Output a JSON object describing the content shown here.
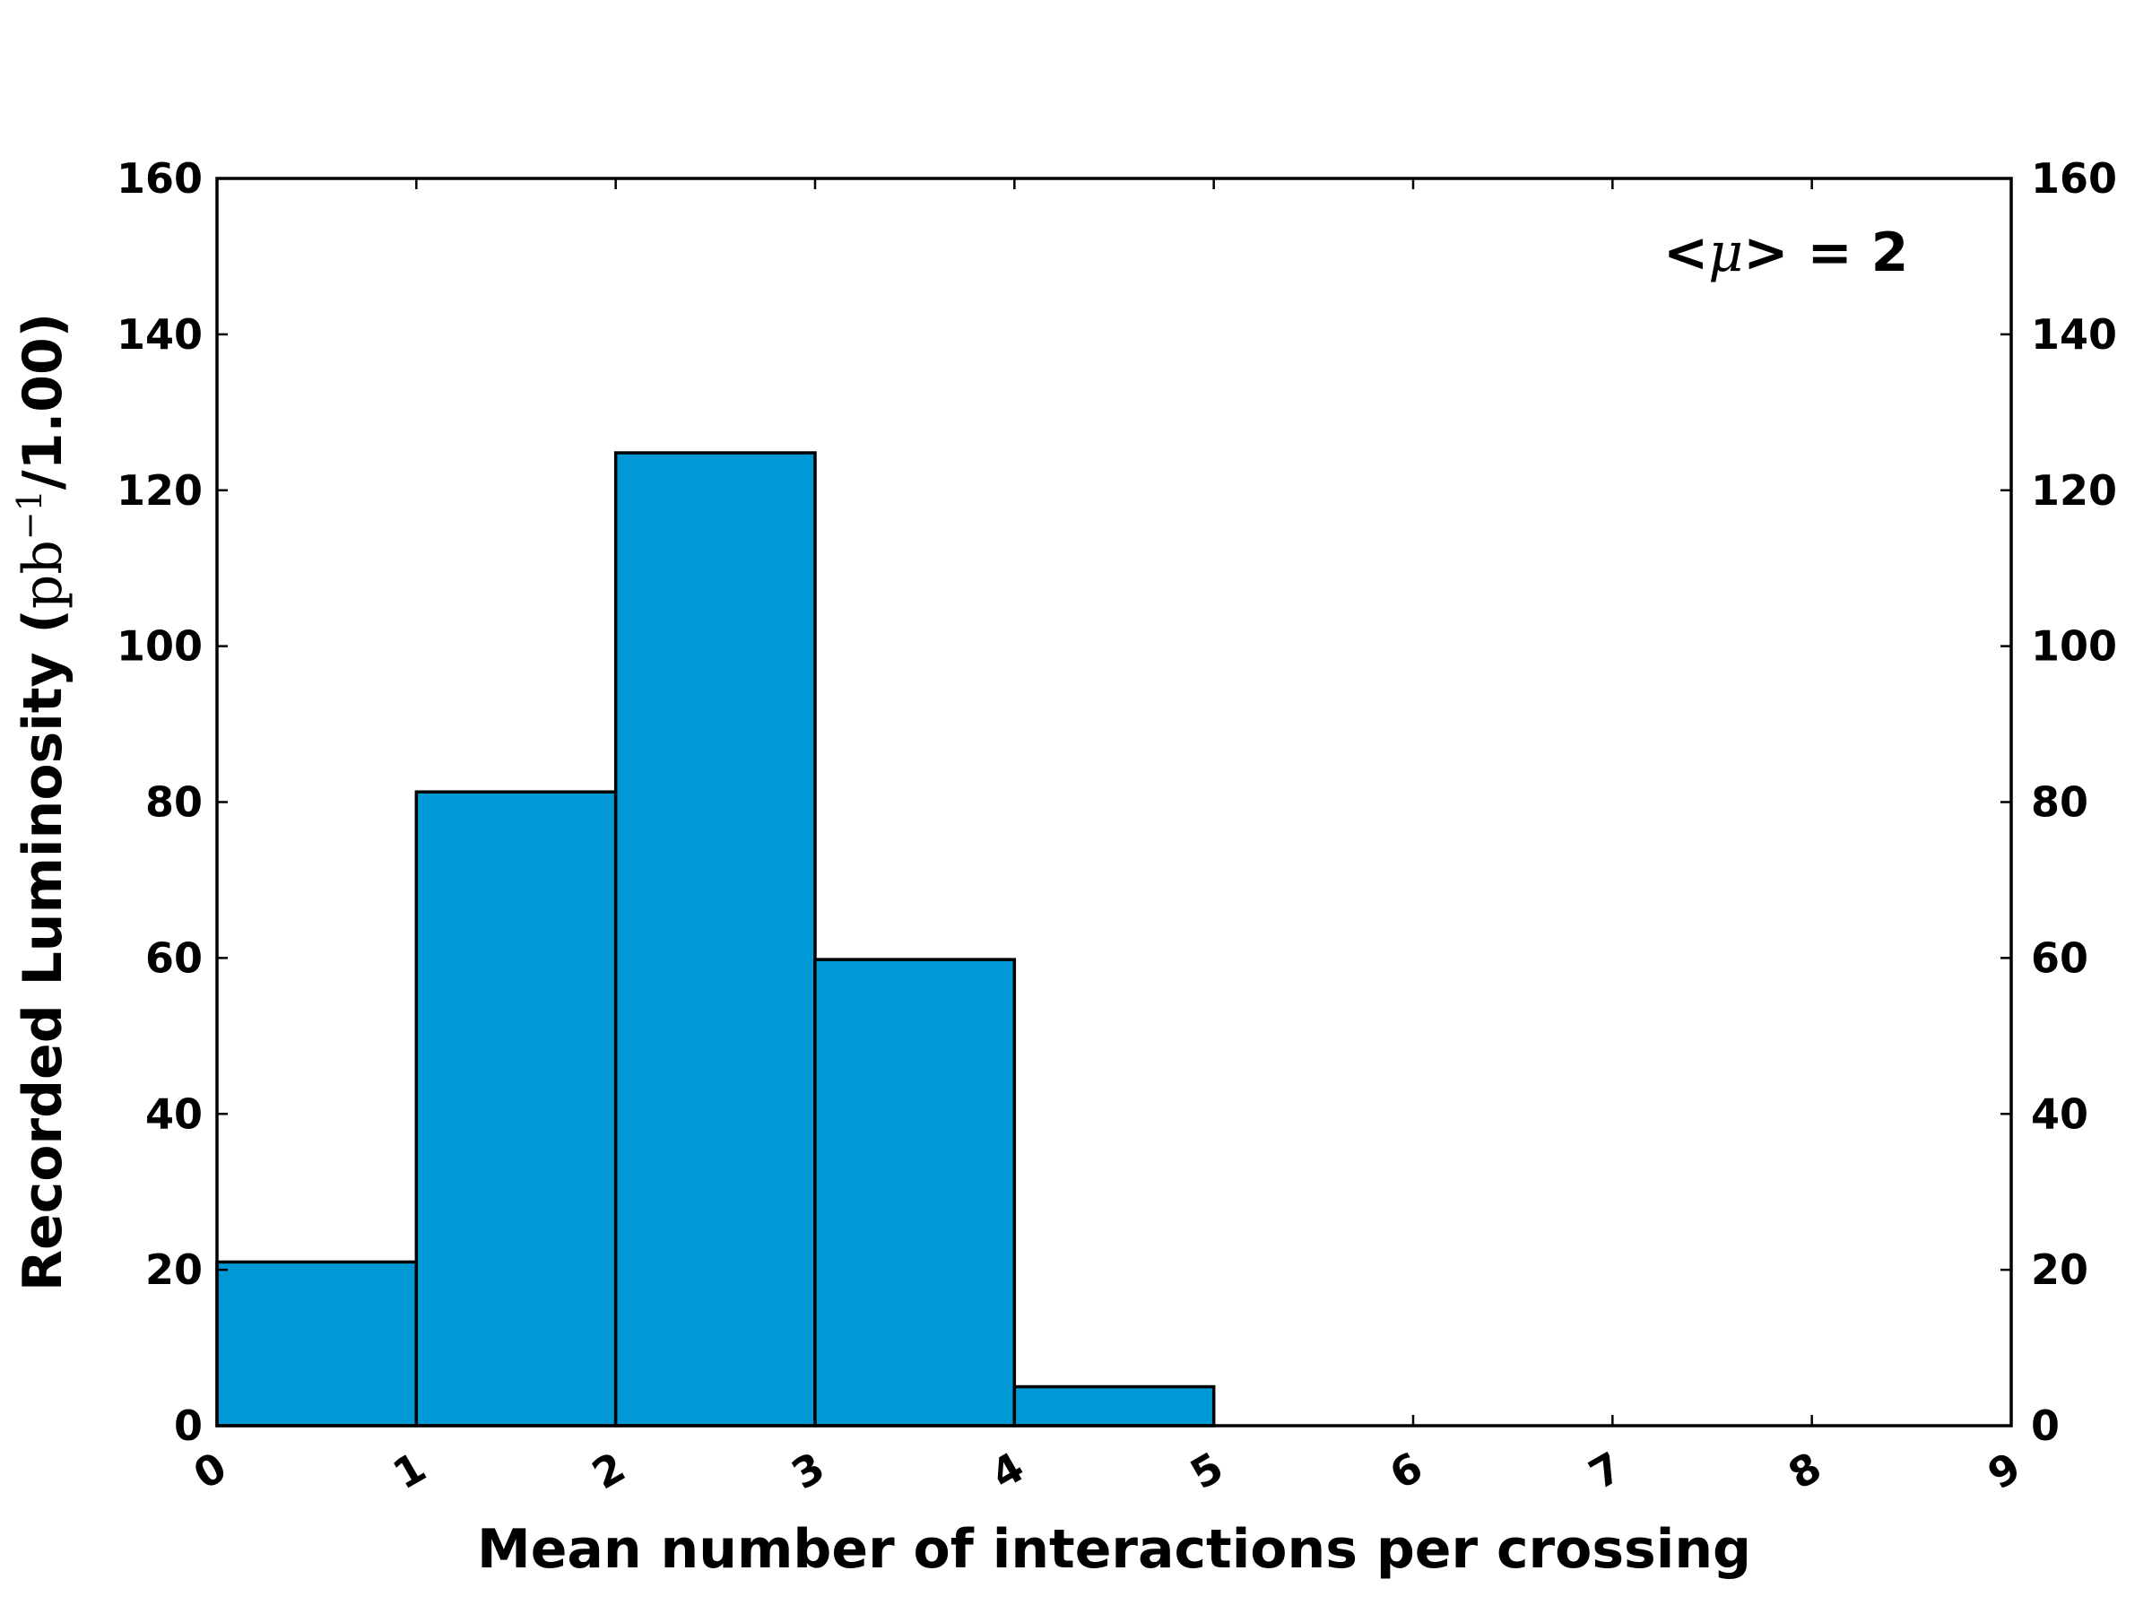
{
  "chart_data": {
    "type": "bar",
    "subtype": "histogram",
    "bin_edges": [
      0,
      1,
      2,
      3,
      4,
      5,
      6,
      7,
      8,
      9
    ],
    "values": [
      21,
      81.3,
      124.8,
      59.8,
      5,
      0,
      0,
      0,
      0
    ],
    "xlim": [
      0,
      9
    ],
    "ylim": [
      0,
      160
    ],
    "x_ticks": [
      "0",
      "1",
      "2",
      "3",
      "4",
      "5",
      "6",
      "7",
      "8",
      "9"
    ],
    "y_ticks": [
      "0",
      "20",
      "40",
      "60",
      "80",
      "100",
      "120",
      "140",
      "160"
    ],
    "xlabel": "Mean number of interactions per crossing",
    "ylabel": {
      "prefix": "Recorded Luminosity (",
      "unit": "pb",
      "exponent": "−1",
      "suffix": "/1.00)"
    },
    "annotation": {
      "lt": "<",
      "mu": "μ",
      "rest": "> = 2"
    },
    "grid": false,
    "colors": {
      "fill": "#0099d6",
      "edge": "#000000"
    }
  }
}
